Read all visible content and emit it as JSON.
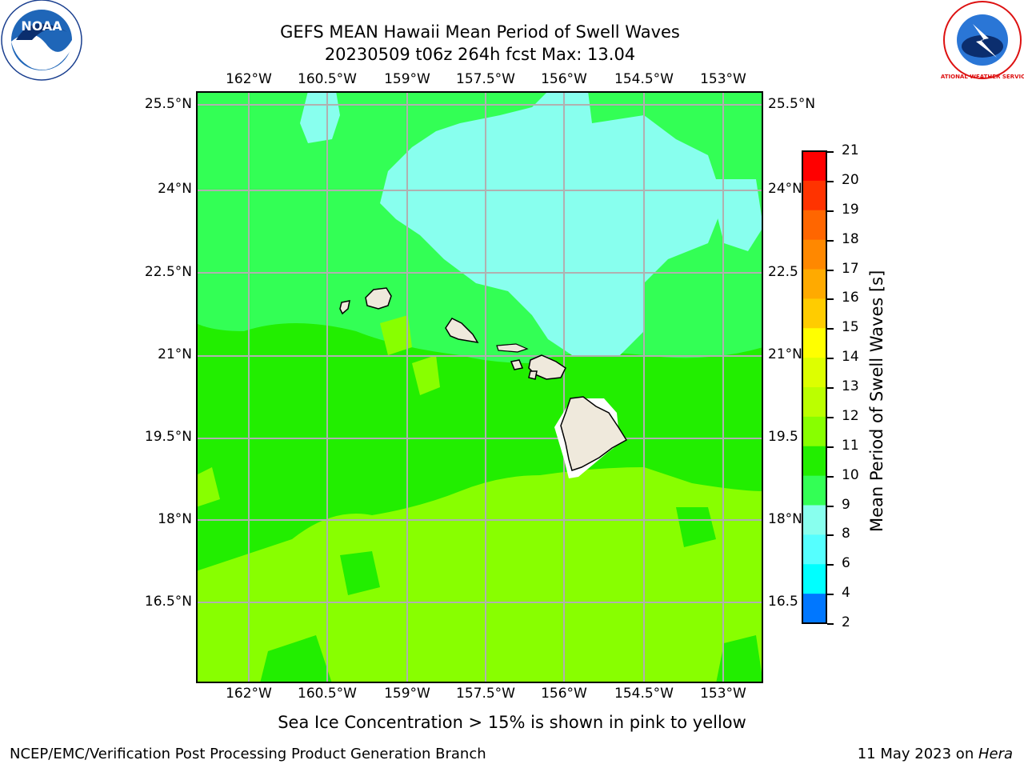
{
  "title": {
    "line1": "GEFS MEAN Hawaii Mean Period of Swell Waves",
    "line2": "20230509 t06z 264h fcst   Max: 13.04"
  },
  "logos": {
    "left": {
      "name": "NOAA",
      "text": "NOAA"
    },
    "right": {
      "name": "National Weather Service",
      "text": "NATIONAL WEATHER SERVICE"
    }
  },
  "map": {
    "lon_labels": [
      "162°W",
      "160.5°W",
      "159°W",
      "157.5°W",
      "156°W",
      "154.5°W",
      "153°W"
    ],
    "lat_labels": [
      "25.5°N",
      "24°N",
      "22.5°N",
      "21°N",
      "19.5°N",
      "18°N",
      "16.5°N"
    ],
    "lat_labels_right": [
      "25.5°N",
      "24°N",
      "22.5",
      "21°N",
      "19.5",
      "18°N",
      "16.5"
    ],
    "grid_color": "#b0b0b0",
    "land_color": "#efe9dc"
  },
  "colorbar": {
    "label": "Mean Period of Swell Waves [s]",
    "ticks": [
      "21",
      "20",
      "19",
      "18",
      "17",
      "16",
      "15",
      "14",
      "13",
      "12",
      "11",
      "10",
      "9",
      "8",
      "6",
      "4",
      "2"
    ],
    "colors": [
      "#ff0000",
      "#ff3300",
      "#ff6600",
      "#ff8800",
      "#ffaa00",
      "#ffcc00",
      "#ffff00",
      "#ddff00",
      "#bbff00",
      "#88ff00",
      "#22ee00",
      "#33ff55",
      "#88ffee",
      "#55ffff",
      "#00ffff",
      "#0077ff",
      "#0000ff"
    ]
  },
  "caption": "Sea Ice Concentration > 15% is shown in pink to yellow",
  "footer": {
    "left": "NCEP/EMC/Verification Post Processing Product Generation Branch",
    "date": "11 May 2023 on ",
    "machine": "Hera"
  }
}
